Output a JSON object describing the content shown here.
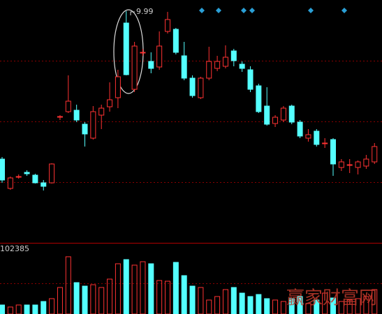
{
  "chart_data": {
    "type": "candlestick",
    "up_color": "#ff3232",
    "down_color": "#54ffff",
    "ylim": [
      6.7,
      10.15
    ],
    "volume_ylim": [
      0,
      110000
    ],
    "volume_label": "102385",
    "watermark": "赢家财富网",
    "open": [
      7.87,
      7.45,
      7.61,
      7.68,
      7.64,
      7.53,
      7.53,
      8.47,
      8.55,
      8.57,
      8.37,
      8.17,
      8.5,
      8.62,
      8.75,
      9.82,
      8.87,
      9.39,
      9.27,
      9.19,
      9.7,
      9.73,
      9.35,
      9.03,
      8.75,
      9.03,
      9.17,
      9.2,
      9.42,
      9.23,
      9.15,
      8.92,
      8.63,
      8.38,
      8.43,
      8.63,
      8.4,
      8.17,
      8.27,
      8.09,
      8.15,
      7.75,
      7.78,
      7.75,
      7.77,
      7.83
    ],
    "high": [
      7.9,
      7.62,
      7.65,
      7.71,
      7.66,
      7.57,
      7.81,
      8.5,
      9.07,
      8.65,
      8.4,
      8.63,
      8.65,
      8.97,
      9.15,
      9.99,
      9.55,
      9.45,
      9.4,
      9.7,
      9.98,
      9.75,
      9.55,
      9.07,
      9.05,
      9.48,
      9.35,
      9.5,
      9.45,
      9.27,
      9.2,
      8.95,
      8.9,
      8.5,
      8.63,
      8.65,
      8.43,
      8.3,
      8.3,
      8.17,
      8.17,
      7.87,
      7.87,
      7.85,
      7.93,
      8.1
    ],
    "low": [
      7.53,
      7.43,
      7.59,
      7.63,
      7.52,
      7.42,
      7.52,
      8.43,
      8.53,
      8.4,
      8.05,
      8.15,
      8.3,
      8.55,
      8.6,
      9.07,
      8.83,
      9.35,
      9.1,
      9.15,
      9.67,
      9.37,
      9.0,
      8.75,
      8.73,
      9.0,
      9.13,
      9.17,
      9.2,
      9.12,
      8.83,
      8.53,
      8.35,
      8.33,
      8.4,
      8.37,
      8.17,
      8.12,
      8.05,
      8.03,
      7.63,
      7.7,
      7.67,
      7.65,
      7.73,
      7.8
    ],
    "close": [
      7.57,
      7.6,
      7.62,
      7.66,
      7.53,
      7.48,
      7.8,
      8.48,
      8.7,
      8.43,
      8.23,
      8.55,
      8.6,
      8.72,
      9.05,
      9.08,
      9.49,
      9.4,
      9.17,
      9.49,
      9.87,
      9.4,
      9.03,
      8.78,
      9.03,
      9.27,
      9.27,
      9.33,
      9.28,
      9.17,
      8.87,
      8.55,
      8.37,
      8.47,
      8.6,
      8.4,
      8.2,
      8.22,
      8.08,
      8.1,
      7.8,
      7.83,
      7.79,
      7.83,
      7.87,
      8.05
    ],
    "volume": [
      15000,
      11600,
      15000,
      15000,
      15000,
      20800,
      25500,
      44000,
      95000,
      52100,
      46300,
      48600,
      44000,
      57900,
      83400,
      90300,
      81100,
      86800,
      83400,
      55600,
      54400,
      85700,
      63700,
      46300,
      44000,
      23200,
      29000,
      40500,
      44000,
      34700,
      29000,
      32400,
      25500,
      23200,
      20800,
      25500,
      29000,
      17400,
      23200,
      34700,
      26600,
      20800,
      23200,
      25500,
      29000,
      40500
    ]
  }
}
